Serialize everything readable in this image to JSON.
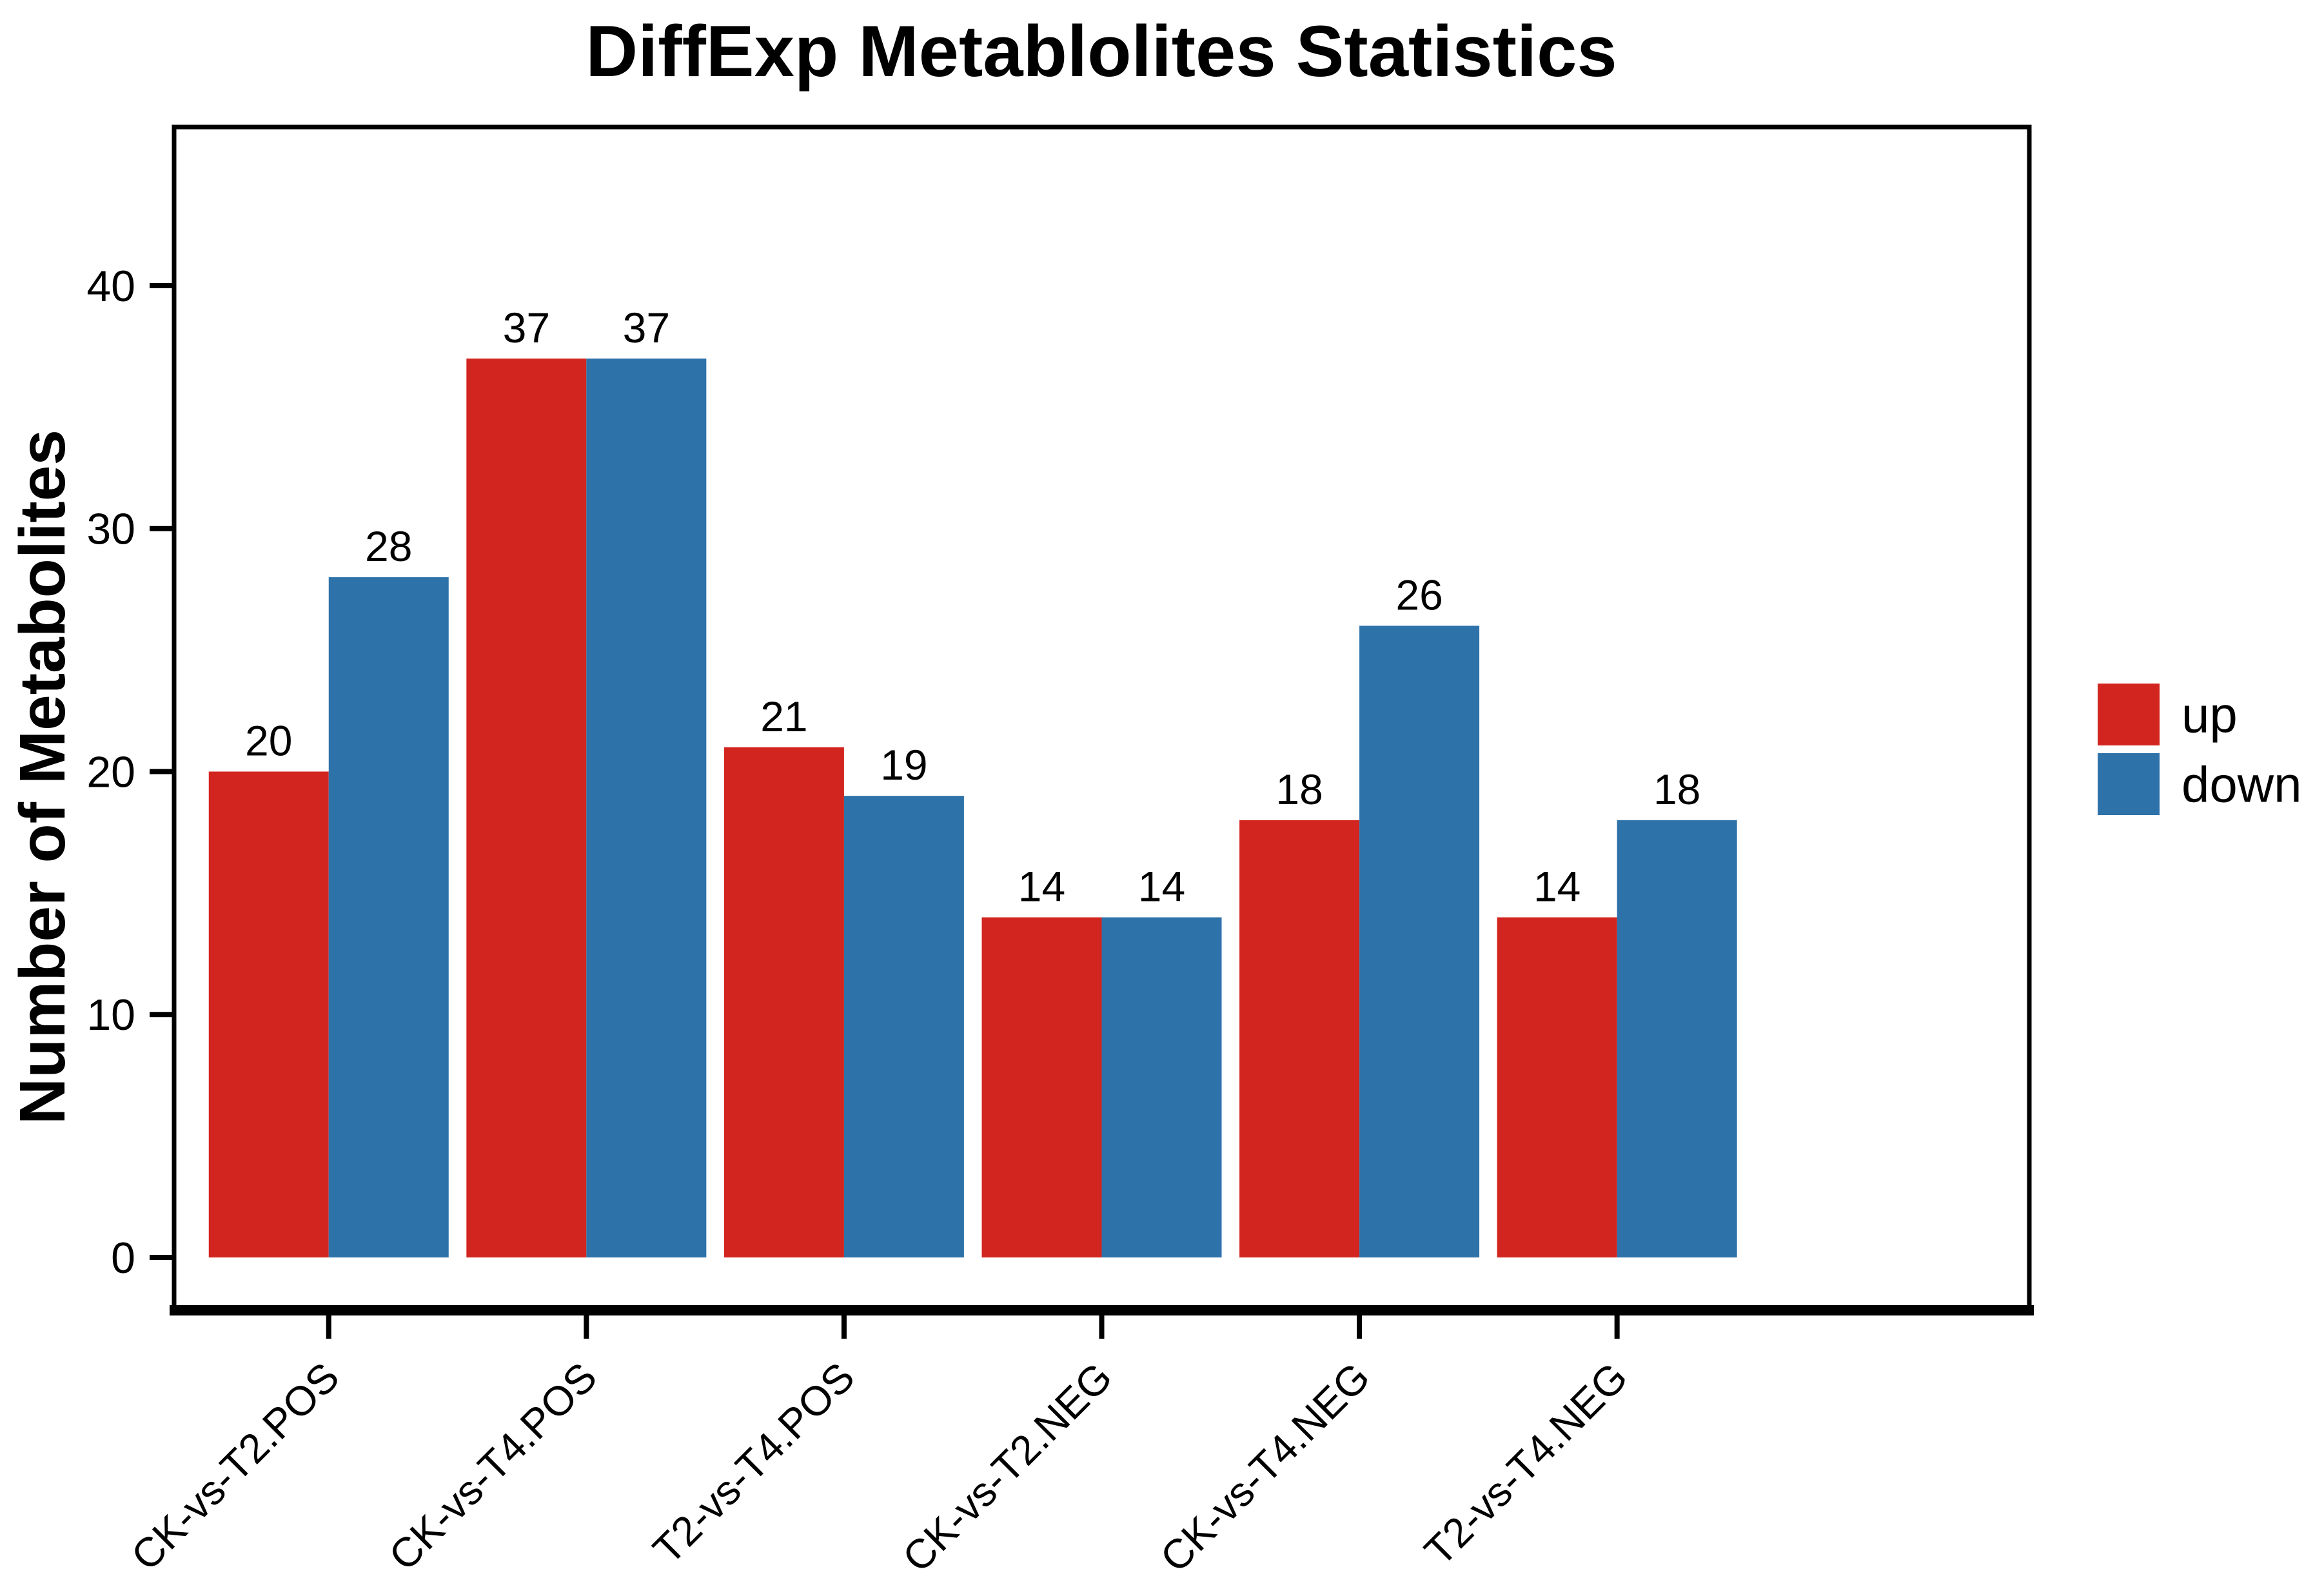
{
  "chart_data": {
    "type": "bar",
    "title": "DiffExp Metablolites Statistics",
    "xlabel": "",
    "ylabel": "Number of Metabolites",
    "categories": [
      "CK-vs-T2.POS",
      "CK-vs-T4.POS",
      "T2-vs-T4.POS",
      "CK-vs-T2.NEG",
      "CK-vs-T4.NEG",
      "T2-vs-T4.NEG"
    ],
    "series": [
      {
        "name": "up",
        "color": "#D2251F",
        "values": [
          20,
          37,
          21,
          14,
          18,
          14
        ]
      },
      {
        "name": "down",
        "color": "#2E72AA",
        "values": [
          28,
          37,
          19,
          14,
          26,
          18
        ]
      }
    ],
    "bar_value_labels": [
      {
        "category": "CK-vs-T2.POS",
        "up": 20,
        "down": 28
      },
      {
        "category": "CK-vs-T4.POS",
        "up": 37,
        "down": 37
      },
      {
        "category": "T2-vs-T4.POS",
        "up": 21,
        "down": 19
      },
      {
        "category": "CK-vs-T2.NEG",
        "up": 14,
        "down": 14
      },
      {
        "category": "CK-vs-T4.NEG",
        "up": 18,
        "down": 26
      },
      {
        "category": "T2-vs-T4.NEG",
        "up": 14,
        "down": 18
      }
    ],
    "yticks": [
      0,
      10,
      20,
      30,
      40
    ],
    "ylim": [
      0,
      46.5
    ],
    "grid": false,
    "legend_position": "right",
    "legend": [
      {
        "label": "up",
        "color": "#D2251F"
      },
      {
        "label": "down",
        "color": "#2E72AA"
      }
    ],
    "axis_color": "#000000",
    "text_color": "#000000"
  }
}
